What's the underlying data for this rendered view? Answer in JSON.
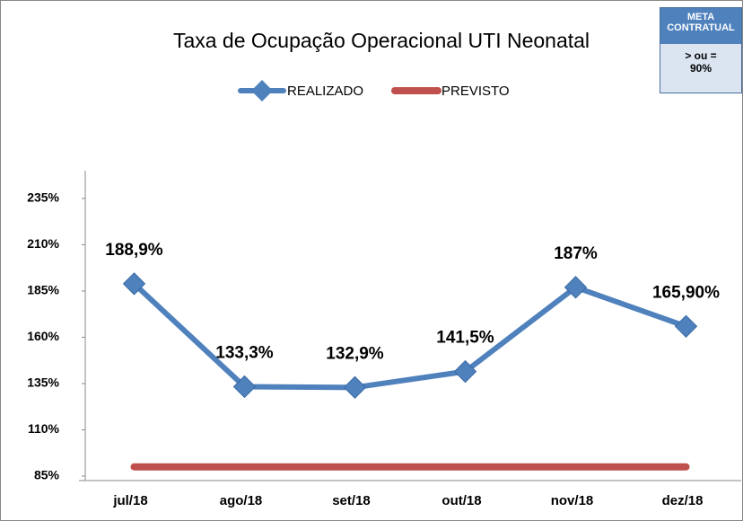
{
  "chart_data": {
    "type": "line",
    "title": "Taxa de Ocupação Operacional UTI Neonatal",
    "categories": [
      "jul/18",
      "ago/18",
      "set/18",
      "out/18",
      "nov/18",
      "dez/18"
    ],
    "series": [
      {
        "name": "REALIZADO",
        "color": "#4f81bd",
        "marker": "diamond",
        "values": [
          188.9,
          133.3,
          132.9,
          141.5,
          187,
          165.9
        ],
        "value_labels": [
          "188,9%",
          "133,3%",
          "132,9%",
          "141,5%",
          "187%",
          "165,90%"
        ]
      },
      {
        "name": "PREVISTO",
        "color": "#c0504d",
        "values": [
          90,
          90,
          90,
          90,
          90,
          90
        ]
      }
    ],
    "ylim": [
      85,
      250
    ],
    "yticks": [
      {
        "value": 85,
        "label": "85%"
      },
      {
        "value": 110,
        "label": "110%"
      },
      {
        "value": 135,
        "label": "135%"
      },
      {
        "value": 160,
        "label": "160%"
      },
      {
        "value": 185,
        "label": "185%"
      },
      {
        "value": 210,
        "label": "210%"
      },
      {
        "value": 235,
        "label": "235%"
      }
    ],
    "legend": "top"
  },
  "meta": {
    "header": "META CONTRATUAL",
    "text": "> ou = 90%"
  }
}
